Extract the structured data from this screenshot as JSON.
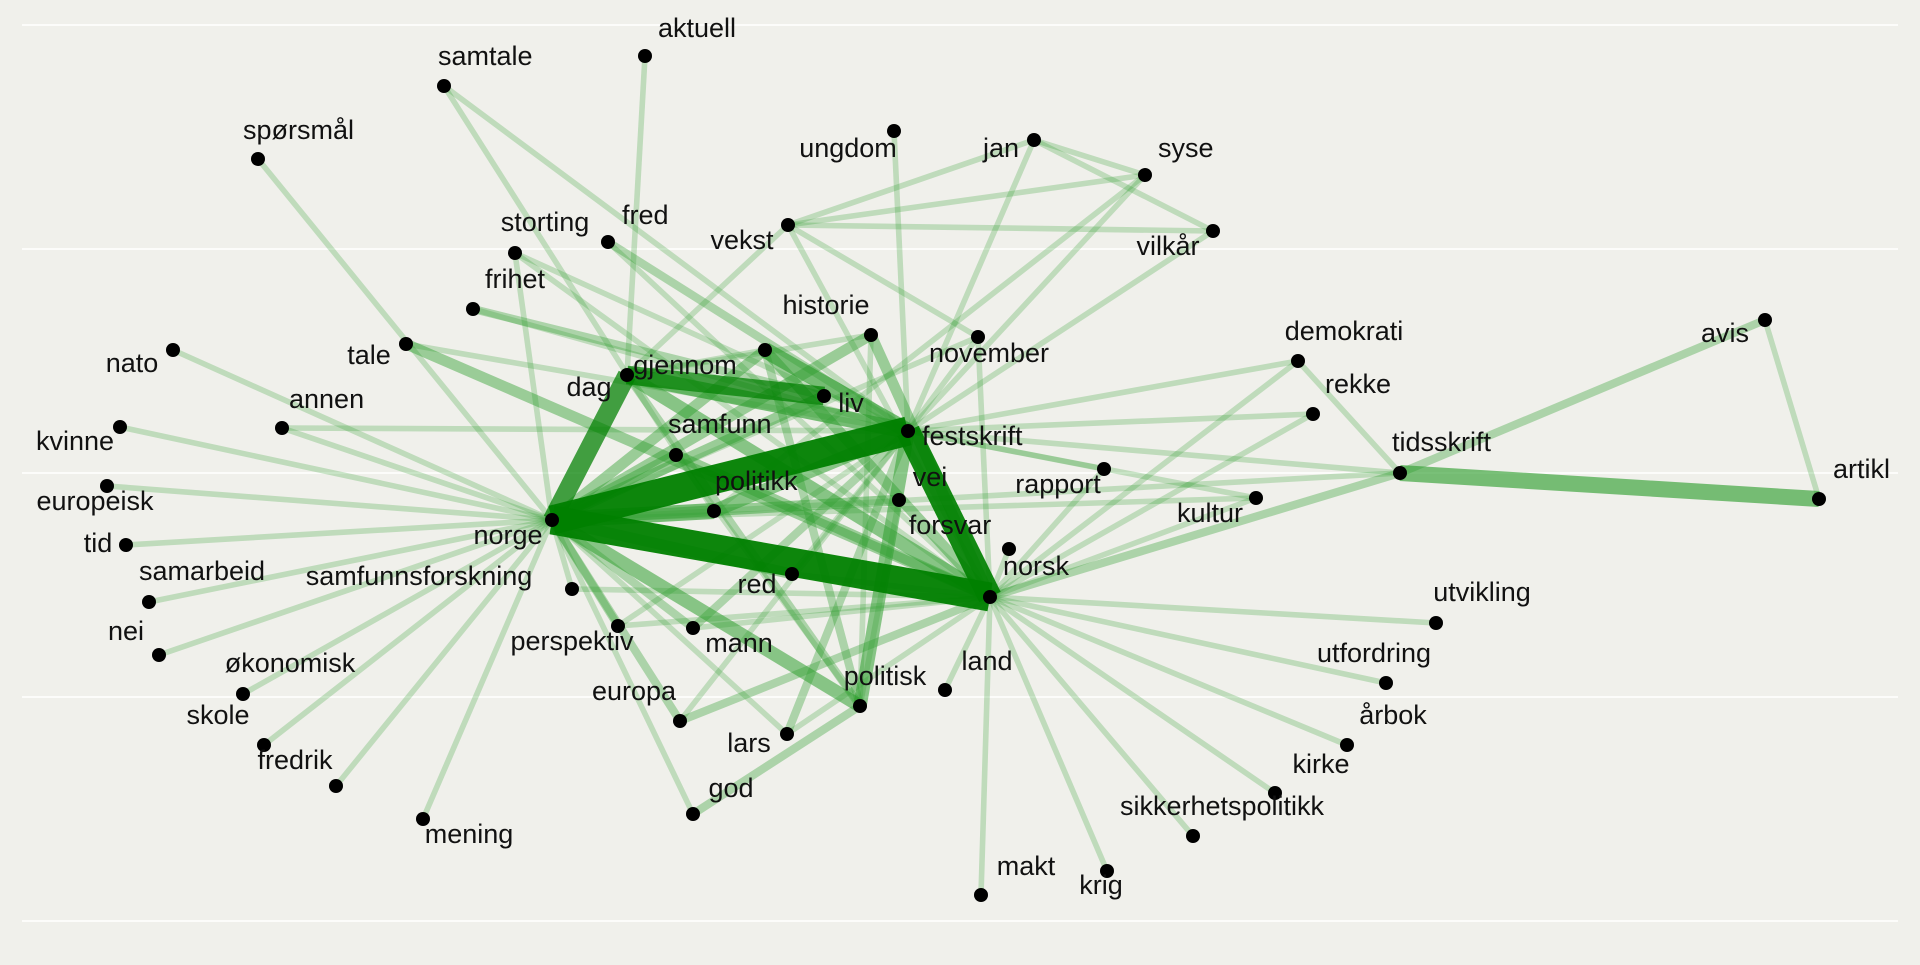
{
  "graph": {
    "colors": {
      "background": "#f0f0eb",
      "edge": "#2e9e2e",
      "strong_edge": "#008000",
      "node": "#000000",
      "label": "#111111",
      "gridline": "#ffffff"
    },
    "nodes": [
      {
        "id": "aktuell",
        "label": "aktuell"
      },
      {
        "id": "samtale",
        "label": "samtale"
      },
      {
        "id": "spørsmål",
        "label": "spørsmål"
      },
      {
        "id": "ungdom",
        "label": "ungdom"
      },
      {
        "id": "jan",
        "label": "jan"
      },
      {
        "id": "syse",
        "label": "syse"
      },
      {
        "id": "vilkår",
        "label": "vilkår"
      },
      {
        "id": "vekst",
        "label": "vekst"
      },
      {
        "id": "storting",
        "label": "storting"
      },
      {
        "id": "fred",
        "label": "fred"
      },
      {
        "id": "frihet",
        "label": "frihet"
      },
      {
        "id": "historie",
        "label": "historie"
      },
      {
        "id": "november",
        "label": "november"
      },
      {
        "id": "demokrati",
        "label": "demokrati"
      },
      {
        "id": "avis",
        "label": "avis"
      },
      {
        "id": "nato",
        "label": "nato"
      },
      {
        "id": "tale",
        "label": "tale"
      },
      {
        "id": "dag",
        "label": "dag"
      },
      {
        "id": "gjennom",
        "label": "gjennom"
      },
      {
        "id": "liv",
        "label": "liv"
      },
      {
        "id": "rekke",
        "label": "rekke"
      },
      {
        "id": "annen",
        "label": "annen"
      },
      {
        "id": "festskrift",
        "label": "festskrift"
      },
      {
        "id": "samfunn",
        "label": "samfunn"
      },
      {
        "id": "kvinne",
        "label": "kvinne"
      },
      {
        "id": "tidsskrift",
        "label": "tidsskrift"
      },
      {
        "id": "artikl",
        "label": "artikl"
      },
      {
        "id": "europeisk",
        "label": "europeisk"
      },
      {
        "id": "rapport",
        "label": "rapport"
      },
      {
        "id": "politikk",
        "label": "politikk"
      },
      {
        "id": "vei",
        "label": "vei"
      },
      {
        "id": "kultur",
        "label": "kultur"
      },
      {
        "id": "norge",
        "label": "norge"
      },
      {
        "id": "tid",
        "label": "tid"
      },
      {
        "id": "forsvar",
        "label": "forsvar"
      },
      {
        "id": "norsk",
        "label": "norsk"
      },
      {
        "id": "samarbeid",
        "label": "samarbeid"
      },
      {
        "id": "samfunnsforskning",
        "label": "samfunnsforskning"
      },
      {
        "id": "red",
        "label": "red"
      },
      {
        "id": "utvikling",
        "label": "utvikling"
      },
      {
        "id": "nei",
        "label": "nei"
      },
      {
        "id": "perspektiv",
        "label": "perspektiv"
      },
      {
        "id": "mann",
        "label": "mann"
      },
      {
        "id": "utfordring",
        "label": "utfordring"
      },
      {
        "id": "økonomisk",
        "label": "økonomisk"
      },
      {
        "id": "land",
        "label": "land"
      },
      {
        "id": "politisk",
        "label": "politisk"
      },
      {
        "id": "europa",
        "label": "europa"
      },
      {
        "id": "skole",
        "label": "skole"
      },
      {
        "id": "årbok",
        "label": "årbok"
      },
      {
        "id": "fredrik",
        "label": "fredrik"
      },
      {
        "id": "lars",
        "label": "lars"
      },
      {
        "id": "kirke",
        "label": "kirke"
      },
      {
        "id": "god",
        "label": "god"
      },
      {
        "id": "sikkerhetspolitikk",
        "label": "sikkerhetspolitikk"
      },
      {
        "id": "mening",
        "label": "mening"
      },
      {
        "id": "makt",
        "label": "makt"
      },
      {
        "id": "krig",
        "label": "krig"
      }
    ],
    "edges": [
      {
        "source": "norge",
        "target": "festskrift",
        "weight": 10
      },
      {
        "source": "norge",
        "target": "norsk",
        "weight": 10
      },
      {
        "source": "festskrift",
        "target": "norsk",
        "weight": 8
      },
      {
        "source": "norge",
        "target": "dag",
        "weight": 6
      },
      {
        "source": "dag",
        "target": "liv",
        "weight": 6
      },
      {
        "source": "gjennom",
        "target": "festskrift",
        "weight": 5
      },
      {
        "source": "norge",
        "target": "politikk",
        "weight": 5
      },
      {
        "source": "dag",
        "target": "festskrift",
        "weight": 5
      },
      {
        "source": "tidsskrift",
        "target": "artikl",
        "weight": 5
      },
      {
        "source": "dag",
        "target": "norsk",
        "weight": 4
      },
      {
        "source": "politikk",
        "target": "festskrift",
        "weight": 4
      },
      {
        "source": "politisk",
        "target": "festskrift",
        "weight": 4
      },
      {
        "source": "norge",
        "target": "politisk",
        "weight": 4
      },
      {
        "source": "norge",
        "target": "red",
        "weight": 3
      },
      {
        "source": "tale",
        "target": "norsk",
        "weight": 3
      },
      {
        "source": "samfunn",
        "target": "norsk",
        "weight": 3
      },
      {
        "source": "historie",
        "target": "norsk",
        "weight": 3
      },
      {
        "source": "gjennom",
        "target": "norsk",
        "weight": 3
      },
      {
        "source": "norge",
        "target": "samfunn",
        "weight": 3
      },
      {
        "source": "norge",
        "target": "gjennom",
        "weight": 3
      },
      {
        "source": "norge",
        "target": "liv",
        "weight": 3
      },
      {
        "source": "norge",
        "target": "vei",
        "weight": 3
      },
      {
        "source": "norge",
        "target": "historie",
        "weight": 3
      },
      {
        "source": "frihet",
        "target": "liv",
        "weight": 2
      },
      {
        "source": "fred",
        "target": "festskrift",
        "weight": 2
      },
      {
        "source": "avis",
        "target": "tidsskrift",
        "weight": 2
      },
      {
        "source": "tidsskrift",
        "target": "norsk",
        "weight": 2
      },
      {
        "source": "norge",
        "target": "europa",
        "weight": 2
      },
      {
        "source": "norge",
        "target": "perspektiv",
        "weight": 2
      },
      {
        "source": "norge",
        "target": "mann",
        "weight": 2
      },
      {
        "source": "politisk",
        "target": "god",
        "weight": 2
      },
      {
        "source": "europa",
        "target": "norsk",
        "weight": 2
      },
      {
        "source": "dag",
        "target": "politisk",
        "weight": 2
      },
      {
        "source": "gjennom",
        "target": "politisk",
        "weight": 2
      },
      {
        "source": "mann",
        "target": "festskrift",
        "weight": 2
      },
      {
        "source": "lars",
        "target": "festskrift",
        "weight": 2
      },
      {
        "source": "norge",
        "target": "tid",
        "weight": 1
      },
      {
        "source": "norge",
        "target": "europeisk",
        "weight": 1
      },
      {
        "source": "norge",
        "target": "kvinne",
        "weight": 1
      },
      {
        "source": "norge",
        "target": "nei",
        "weight": 1
      },
      {
        "source": "norge",
        "target": "samarbeid",
        "weight": 1
      },
      {
        "source": "norge",
        "target": "økonomisk",
        "weight": 1
      },
      {
        "source": "norge",
        "target": "skole",
        "weight": 1
      },
      {
        "source": "norge",
        "target": "fredrik",
        "weight": 1
      },
      {
        "source": "norge",
        "target": "mening",
        "weight": 1
      },
      {
        "source": "norge",
        "target": "nato",
        "weight": 1
      },
      {
        "source": "norge",
        "target": "annen",
        "weight": 1
      },
      {
        "source": "norge",
        "target": "samfunnsforskning",
        "weight": 1
      },
      {
        "source": "norge",
        "target": "spørsmål",
        "weight": 1
      },
      {
        "source": "norge",
        "target": "storting",
        "weight": 1
      },
      {
        "source": "norge",
        "target": "tidsskrift",
        "weight": 1
      },
      {
        "source": "norge",
        "target": "lars",
        "weight": 1
      },
      {
        "source": "norge",
        "target": "god",
        "weight": 1
      },
      {
        "source": "norsk",
        "target": "utvikling",
        "weight": 1
      },
      {
        "source": "norsk",
        "target": "utfordring",
        "weight": 1
      },
      {
        "source": "norsk",
        "target": "årbok",
        "weight": 1
      },
      {
        "source": "norsk",
        "target": "kirke",
        "weight": 1
      },
      {
        "source": "norsk",
        "target": "sikkerhetspolitikk",
        "weight": 1
      },
      {
        "source": "norsk",
        "target": "krig",
        "weight": 1
      },
      {
        "source": "norsk",
        "target": "makt",
        "weight": 1
      },
      {
        "source": "norsk",
        "target": "land",
        "weight": 1
      },
      {
        "source": "norsk",
        "target": "rapport",
        "weight": 1
      },
      {
        "source": "norsk",
        "target": "kultur",
        "weight": 1
      },
      {
        "source": "norsk",
        "target": "demokrati",
        "weight": 1
      },
      {
        "source": "norsk",
        "target": "rekke",
        "weight": 1
      },
      {
        "source": "norsk",
        "target": "november",
        "weight": 1
      },
      {
        "source": "norsk",
        "target": "forsvar",
        "weight": 1
      },
      {
        "source": "norsk",
        "target": "vekst",
        "weight": 1
      },
      {
        "source": "norsk",
        "target": "samfunnsforskning",
        "weight": 1
      },
      {
        "source": "norsk",
        "target": "perspektiv",
        "weight": 1
      },
      {
        "source": "norsk",
        "target": "storting",
        "weight": 1
      },
      {
        "source": "festskrift",
        "target": "jan",
        "weight": 1
      },
      {
        "source": "festskrift",
        "target": "syse",
        "weight": 1
      },
      {
        "source": "festskrift",
        "target": "vilkår",
        "weight": 1
      },
      {
        "source": "festskrift",
        "target": "ungdom",
        "weight": 1
      },
      {
        "source": "festskrift",
        "target": "demokrati",
        "weight": 1
      },
      {
        "source": "festskrift",
        "target": "rekke",
        "weight": 1
      },
      {
        "source": "festskrift",
        "target": "tidsskrift",
        "weight": 1
      },
      {
        "source": "festskrift",
        "target": "kultur",
        "weight": 1
      },
      {
        "source": "festskrift",
        "target": "samtale",
        "weight": 1
      },
      {
        "source": "festskrift",
        "target": "storting",
        "weight": 1
      },
      {
        "source": "festskrift",
        "target": "annen",
        "weight": 1
      },
      {
        "source": "vekst",
        "target": "jan",
        "weight": 1
      },
      {
        "source": "vekst",
        "target": "syse",
        "weight": 1
      },
      {
        "source": "vekst",
        "target": "vilkår",
        "weight": 1
      },
      {
        "source": "vekst",
        "target": "november",
        "weight": 1
      },
      {
        "source": "vekst",
        "target": "dag",
        "weight": 1
      },
      {
        "source": "jan",
        "target": "syse",
        "weight": 1
      },
      {
        "source": "jan",
        "target": "vilkår",
        "weight": 1
      },
      {
        "source": "syse",
        "target": "politikk",
        "weight": 1
      },
      {
        "source": "avis",
        "target": "artikl",
        "weight": 1
      },
      {
        "source": "demokrati",
        "target": "tidsskrift",
        "weight": 1
      },
      {
        "source": "aktuell",
        "target": "dag",
        "weight": 1
      },
      {
        "source": "samtale",
        "target": "politikk",
        "weight": 1
      },
      {
        "source": "fred",
        "target": "norsk",
        "weight": 1
      },
      {
        "source": "frihet",
        "target": "festskrift",
        "weight": 1
      },
      {
        "source": "tale",
        "target": "festskrift",
        "weight": 1
      },
      {
        "source": "red",
        "target": "festskrift",
        "weight": 1
      },
      {
        "source": "red",
        "target": "norsk",
        "weight": 1
      },
      {
        "source": "vei",
        "target": "politisk",
        "weight": 1
      },
      {
        "source": "samfunn",
        "target": "politisk",
        "weight": 1
      },
      {
        "source": "historie",
        "target": "politisk",
        "weight": 1
      },
      {
        "source": "europa",
        "target": "festskrift",
        "weight": 1
      },
      {
        "source": "perspektiv",
        "target": "festskrift",
        "weight": 1
      },
      {
        "source": "mann",
        "target": "norsk",
        "weight": 1
      },
      {
        "source": "lars",
        "target": "norsk",
        "weight": 1
      },
      {
        "source": "dag",
        "target": "historie",
        "weight": 1
      },
      {
        "source": "gjennom",
        "target": "dag",
        "weight": 1
      },
      {
        "source": "november",
        "target": "festskrift",
        "weight": 1
      },
      {
        "source": "november",
        "target": "norge",
        "weight": 1
      },
      {
        "source": "rapport",
        "target": "festskrift",
        "weight": 1
      },
      {
        "source": "kultur",
        "target": "norge",
        "weight": 1
      }
    ]
  }
}
